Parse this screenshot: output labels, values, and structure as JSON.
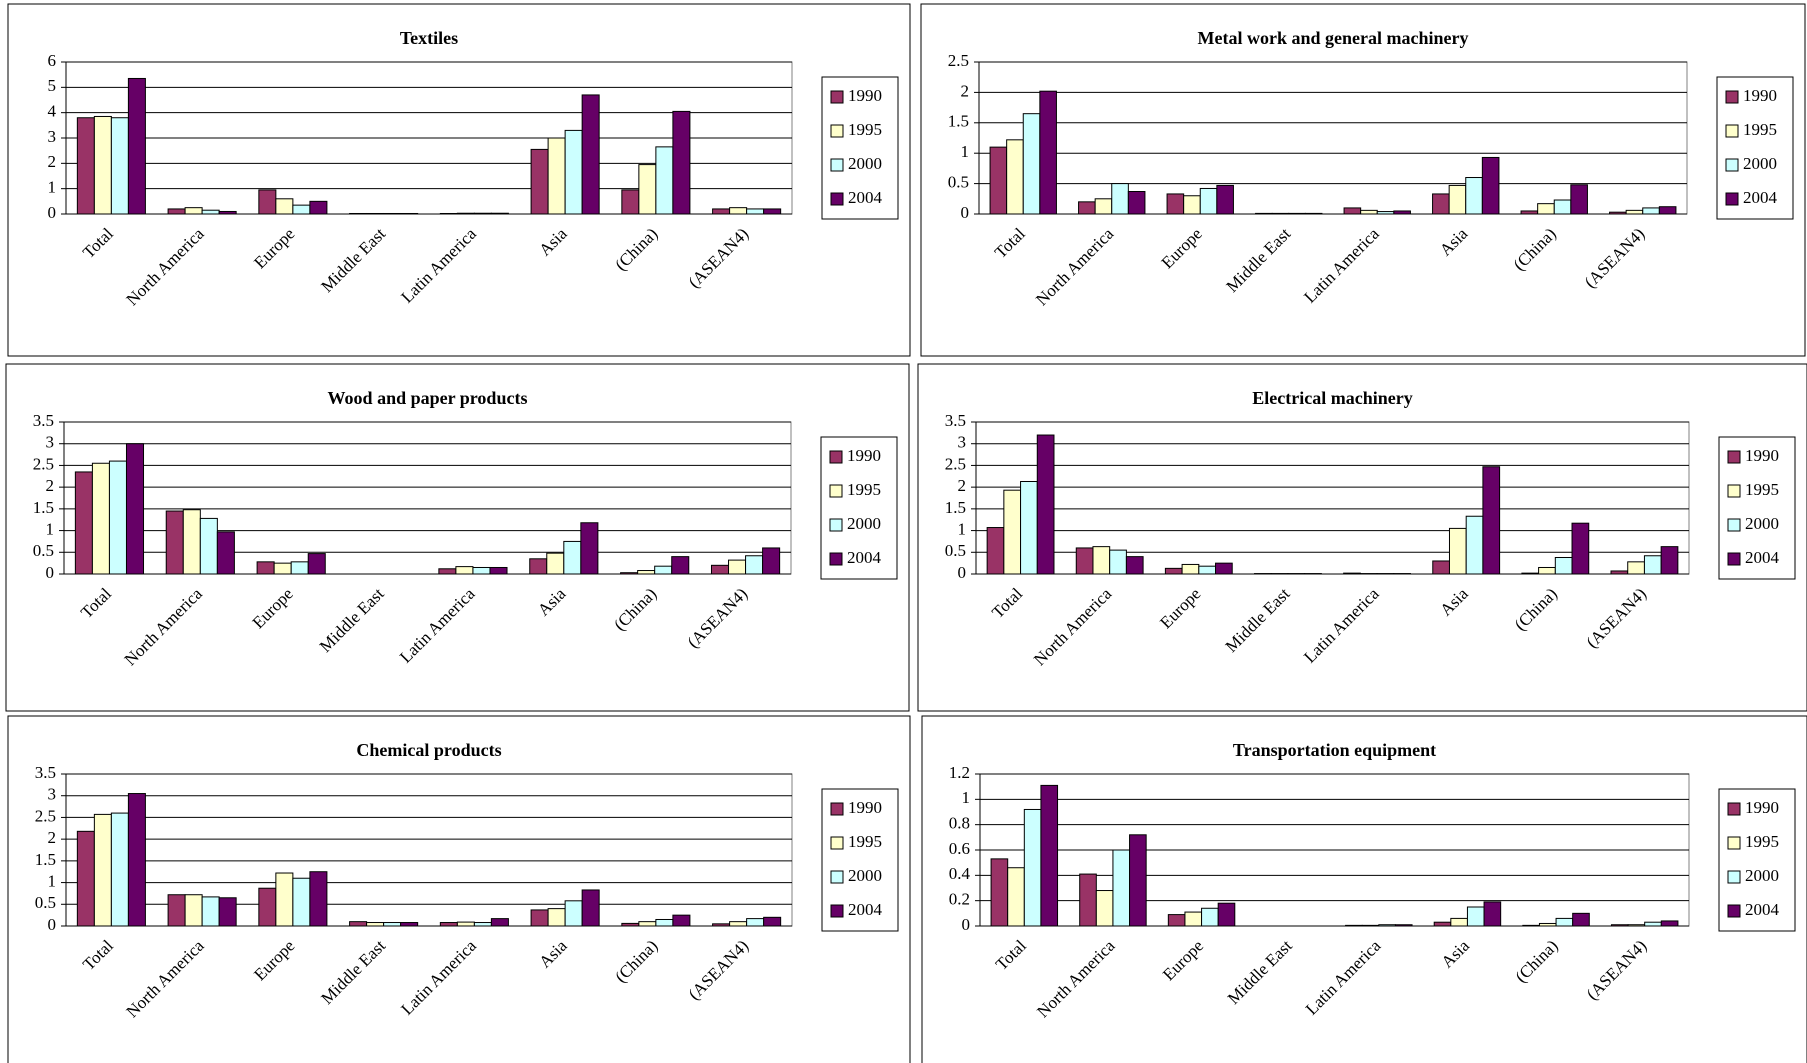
{
  "chart_data": [
    {
      "type": "bar",
      "title": "Textiles",
      "categories": [
        "Total",
        "North America",
        "Europe",
        "Middle East",
        "Latin America",
        "Asia",
        "(China)",
        "(ASEAN4)"
      ],
      "series": [
        {
          "name": "1990",
          "color": "#993366",
          "values": [
            3.8,
            0.2,
            0.95,
            0.02,
            0.02,
            2.55,
            0.95,
            0.2
          ]
        },
        {
          "name": "1995",
          "color": "#ffffcc",
          "values": [
            3.85,
            0.25,
            0.6,
            0.02,
            0.03,
            3.0,
            1.95,
            0.25
          ]
        },
        {
          "name": "2000",
          "color": "#ccffff",
          "values": [
            3.8,
            0.15,
            0.35,
            0.02,
            0.03,
            3.3,
            2.65,
            0.2
          ]
        },
        {
          "name": "2004",
          "color": "#660066",
          "values": [
            5.35,
            0.1,
            0.5,
            0.02,
            0.03,
            4.7,
            4.05,
            0.2
          ]
        }
      ],
      "ylim": [
        0,
        6
      ],
      "yticks": [
        0,
        1,
        2,
        3,
        4,
        5,
        6
      ],
      "grid": true,
      "legend": "right"
    },
    {
      "type": "bar",
      "title": "Metal work and general machinery",
      "categories": [
        "Total",
        "North America",
        "Europe",
        "Middle East",
        "Latin America",
        "Asia",
        "(China)",
        "(ASEAN4)"
      ],
      "series": [
        {
          "name": "1990",
          "color": "#993366",
          "values": [
            1.1,
            0.2,
            0.33,
            0.01,
            0.1,
            0.33,
            0.05,
            0.03
          ]
        },
        {
          "name": "1995",
          "color": "#ffffcc",
          "values": [
            1.22,
            0.25,
            0.3,
            0.01,
            0.06,
            0.47,
            0.17,
            0.06
          ]
        },
        {
          "name": "2000",
          "color": "#ccffff",
          "values": [
            1.65,
            0.5,
            0.42,
            0.01,
            0.04,
            0.6,
            0.23,
            0.1
          ]
        },
        {
          "name": "2004",
          "color": "#660066",
          "values": [
            2.02,
            0.37,
            0.47,
            0.01,
            0.05,
            0.93,
            0.48,
            0.12
          ]
        }
      ],
      "ylim": [
        0,
        2.5
      ],
      "yticks": [
        0,
        0.5,
        1,
        1.5,
        2,
        2.5
      ],
      "grid": true,
      "legend": "right"
    },
    {
      "type": "bar",
      "title": "Wood and paper products",
      "categories": [
        "Total",
        "North America",
        "Europe",
        "Middle East",
        "Latin America",
        "Asia",
        "(China)",
        "(ASEAN4)"
      ],
      "series": [
        {
          "name": "1990",
          "color": "#993366",
          "values": [
            2.35,
            1.45,
            0.28,
            0,
            0.12,
            0.35,
            0.03,
            0.2
          ]
        },
        {
          "name": "1995",
          "color": "#ffffcc",
          "values": [
            2.55,
            1.48,
            0.25,
            0,
            0.17,
            0.48,
            0.08,
            0.32
          ]
        },
        {
          "name": "2000",
          "color": "#ccffff",
          "values": [
            2.6,
            1.28,
            0.28,
            0,
            0.15,
            0.75,
            0.18,
            0.42
          ]
        },
        {
          "name": "2004",
          "color": "#660066",
          "values": [
            3.0,
            0.97,
            0.47,
            0,
            0.15,
            1.18,
            0.4,
            0.6
          ]
        }
      ],
      "ylim": [
        0,
        3.5
      ],
      "yticks": [
        0,
        0.5,
        1,
        1.5,
        2,
        2.5,
        3,
        3.5
      ],
      "grid": true,
      "legend": "right"
    },
    {
      "type": "bar",
      "title": "Electrical machinery",
      "categories": [
        "Total",
        "North America",
        "Europe",
        "Middle East",
        "Latin America",
        "Asia",
        "(China)",
        "(ASEAN4)"
      ],
      "series": [
        {
          "name": "1990",
          "color": "#993366",
          "values": [
            1.07,
            0.6,
            0.13,
            0.01,
            0.02,
            0.3,
            0.02,
            0.07
          ]
        },
        {
          "name": "1995",
          "color": "#ffffcc",
          "values": [
            1.93,
            0.63,
            0.22,
            0.01,
            0.01,
            1.05,
            0.15,
            0.28
          ]
        },
        {
          "name": "2000",
          "color": "#ccffff",
          "values": [
            2.13,
            0.55,
            0.18,
            0.01,
            0.01,
            1.33,
            0.38,
            0.42
          ]
        },
        {
          "name": "2004",
          "color": "#660066",
          "values": [
            3.2,
            0.4,
            0.25,
            0.01,
            0.01,
            2.47,
            1.17,
            0.63
          ]
        }
      ],
      "ylim": [
        0,
        3.5
      ],
      "yticks": [
        0,
        0.5,
        1,
        1.5,
        2,
        2.5,
        3,
        3.5
      ],
      "grid": true,
      "legend": "right"
    },
    {
      "type": "bar",
      "title": "Chemical products",
      "categories": [
        "Total",
        "North America",
        "Europe",
        "Middle East",
        "Latin America",
        "Asia",
        "(China)",
        "(ASEAN4)"
      ],
      "series": [
        {
          "name": "1990",
          "color": "#993366",
          "values": [
            2.18,
            0.72,
            0.87,
            0.1,
            0.08,
            0.37,
            0.06,
            0.05
          ]
        },
        {
          "name": "1995",
          "color": "#ffffcc",
          "values": [
            2.57,
            0.72,
            1.22,
            0.08,
            0.09,
            0.4,
            0.1,
            0.1
          ]
        },
        {
          "name": "2000",
          "color": "#ccffff",
          "values": [
            2.6,
            0.67,
            1.1,
            0.08,
            0.08,
            0.58,
            0.15,
            0.17
          ]
        },
        {
          "name": "2004",
          "color": "#660066",
          "values": [
            3.05,
            0.65,
            1.25,
            0.08,
            0.17,
            0.83,
            0.25,
            0.2
          ]
        }
      ],
      "ylim": [
        0,
        3.5
      ],
      "yticks": [
        0,
        0.5,
        1,
        1.5,
        2,
        2.5,
        3,
        3.5
      ],
      "grid": true,
      "legend": "right"
    },
    {
      "type": "bar",
      "title": "Transportation equipment",
      "categories": [
        "Total",
        "North America",
        "Europe",
        "Middle East",
        "Latin America",
        "Asia",
        "(China)",
        "(ASEAN4)"
      ],
      "series": [
        {
          "name": "1990",
          "color": "#993366",
          "values": [
            0.53,
            0.41,
            0.09,
            0,
            0.005,
            0.03,
            0.005,
            0.01
          ]
        },
        {
          "name": "1995",
          "color": "#ffffcc",
          "values": [
            0.46,
            0.28,
            0.11,
            0,
            0.005,
            0.06,
            0.02,
            0.01
          ]
        },
        {
          "name": "2000",
          "color": "#ccffff",
          "values": [
            0.92,
            0.6,
            0.14,
            0,
            0.01,
            0.15,
            0.06,
            0.03
          ]
        },
        {
          "name": "2004",
          "color": "#660066",
          "values": [
            1.11,
            0.72,
            0.18,
            0,
            0.01,
            0.19,
            0.1,
            0.04
          ]
        }
      ],
      "ylim": [
        0,
        1.2
      ],
      "yticks": [
        0,
        0.2,
        0.4,
        0.6,
        0.8,
        1,
        1.2
      ],
      "grid": true,
      "legend": "right"
    }
  ]
}
